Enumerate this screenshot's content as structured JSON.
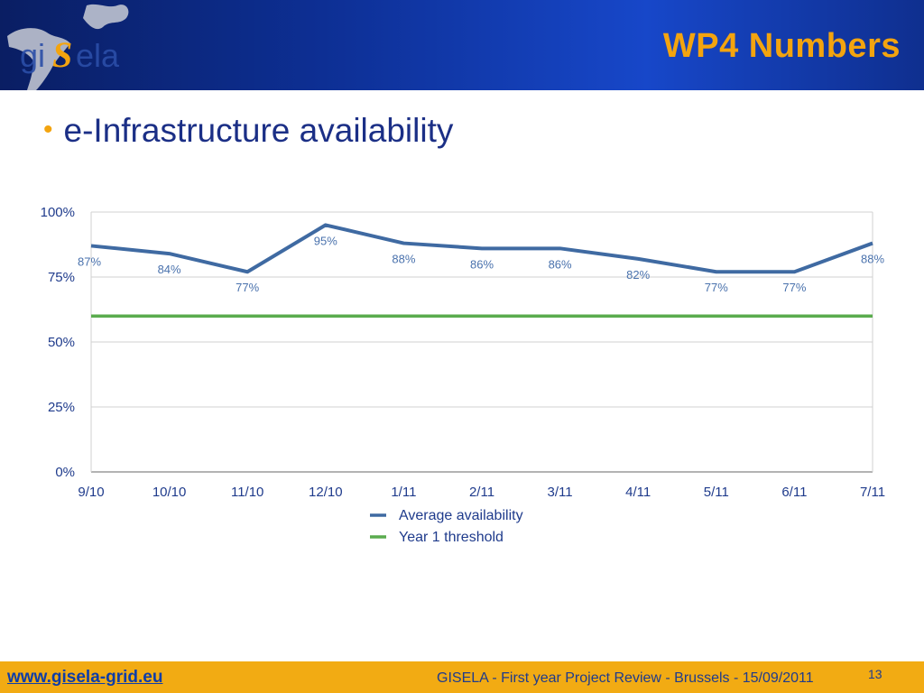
{
  "header": {
    "title": "WP4 Numbers",
    "logo_text": "giSela"
  },
  "slide": {
    "bullet": "e-Infrastructure availability"
  },
  "footer": {
    "link": "www.gisela-grid.eu",
    "caption": "GISELA - First year Project Review - Brussels - 15/09/2011",
    "page": "13"
  },
  "colors": {
    "header_bg": "#0d2f94",
    "accent": "#f3a40f",
    "series_availability": "#3f6aa2",
    "series_threshold": "#5aac4e",
    "footer_bg": "#f2ab13"
  },
  "chart_data": {
    "type": "line",
    "categories": [
      "9/10",
      "10/10",
      "11/10",
      "12/10",
      "1/11",
      "2/11",
      "3/11",
      "4/11",
      "5/11",
      "6/11",
      "7/11"
    ],
    "series": [
      {
        "name": "Average availability",
        "values": [
          87,
          84,
          77,
          95,
          88,
          86,
          86,
          82,
          77,
          77,
          88
        ],
        "labels": [
          "87%",
          "84%",
          "77%",
          "95%",
          "88%",
          "86%",
          "86%",
          "82%",
          "77%",
          "77%",
          "88%"
        ]
      },
      {
        "name": "Year 1 threshold",
        "values": [
          60,
          60,
          60,
          60,
          60,
          60,
          60,
          60,
          60,
          60,
          60
        ]
      }
    ],
    "yticks": [
      "0%",
      "25%",
      "50%",
      "75%",
      "100%"
    ],
    "ylim": [
      0,
      100
    ],
    "grid": true,
    "legend": "bottom-center"
  }
}
